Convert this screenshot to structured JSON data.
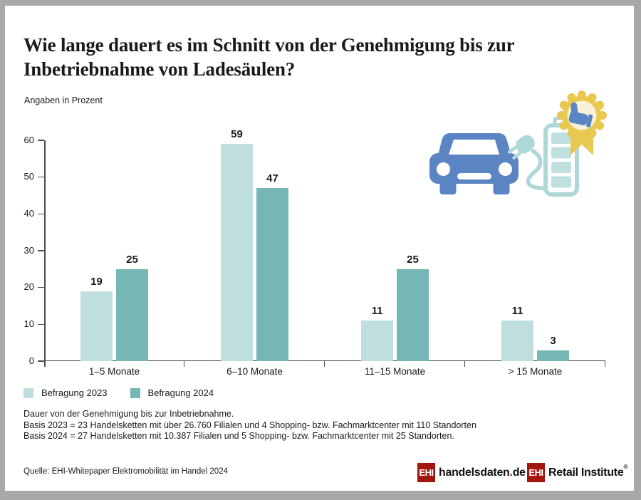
{
  "header": {
    "title_lines": [
      "Wie lange dauert es im Schnitt von der Genehmigung bis zur",
      "Inbetriebnahme von Ladesäulen?"
    ]
  },
  "chart_data": {
    "type": "bar",
    "title": "Wie lange dauert es im Schnitt von der Genehmigung bis zur Inbetriebnahme von Ladesäulen?",
    "ylabel": "Angaben in Prozent",
    "xlabel": "",
    "categories": [
      "1–5 Monate",
      "6–10 Monate",
      "11–15 Monate",
      "> 15 Monate"
    ],
    "series": [
      {
        "name": "Befragung 2023",
        "color": "#bfdfde",
        "values": [
          19,
          59,
          11,
          11
        ]
      },
      {
        "name": "Befragung 2024",
        "color": "#74b7b5",
        "values": [
          25,
          47,
          25,
          3
        ]
      }
    ],
    "ylim": [
      0,
      60
    ],
    "y_ticks": [
      0,
      10,
      20,
      30,
      40,
      50,
      60
    ],
    "grid": false,
    "legend_position": "bottom-left"
  },
  "footnotes": [
    "Dauer von der Genehmigung bis zur Inbetriebnahme.",
    "Basis 2023 = 23 Handelsketten mit über 26.760 Filialen und 4 Shopping- bzw. Fachmarktcenter mit 110 Standorten",
    "Basis 2024 = 27 Handelsketten mit 10.387 Filialen und 5 Shopping- bzw. Fachmarktcenter mit 25 Standorten."
  ],
  "source": "Quelle: EHI-Whitepaper Elektromobilität im Handel 2024",
  "logos": {
    "handelsdaten": {
      "box": "EHI",
      "text_pre": "handelsdaten",
      "dot": ".",
      "text_post": "de"
    },
    "retail": {
      "box": "EHI",
      "text": "Retail Institute",
      "reg": "®"
    }
  },
  "icons": {
    "illustration": "ev-car-charging-battery-award-icon"
  },
  "colors": {
    "frame_gray": "#a8a8a8",
    "text": "#1a1a1a",
    "axis": "#4d4d4d",
    "bar_2023": "#bfdfde",
    "bar_2024": "#74b7b5",
    "car_blue": "#5b84c2",
    "illustration_teal": "#aed8d7",
    "battery_cell_teal": "#bfe0df",
    "badge_gold": "#e9c84f",
    "badge_cream": "#f8f2d8",
    "ehi_red": "#a3150f"
  }
}
